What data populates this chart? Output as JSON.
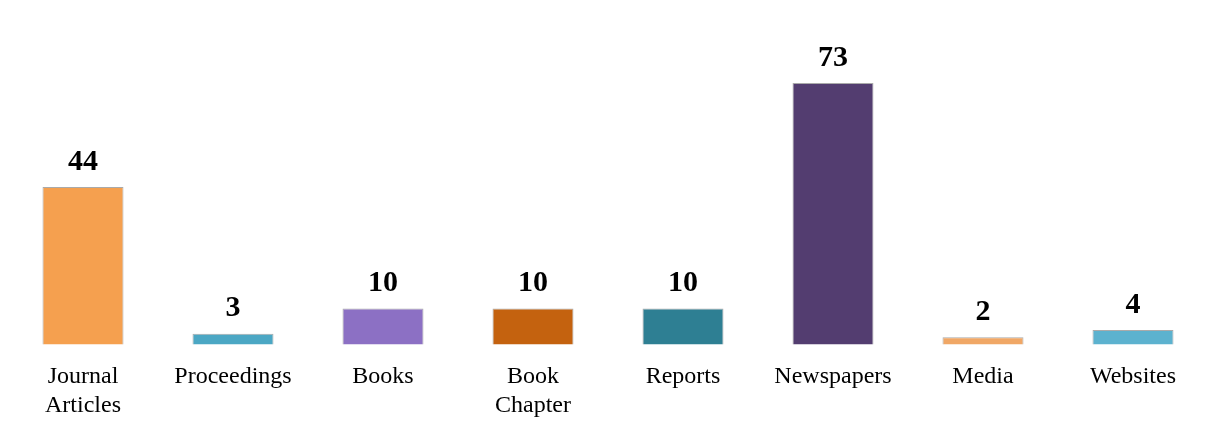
{
  "chart_data": {
    "type": "bar",
    "categories": [
      "Journal Articles",
      "Proceedings",
      "Books",
      "Book Chapter",
      "Reports",
      "Newspapers",
      "Media",
      "Websites"
    ],
    "values": [
      44,
      3,
      10,
      10,
      10,
      73,
      2,
      4
    ],
    "colors": [
      "#f5a04f",
      "#4ba7c4",
      "#8c70c4",
      "#c4620f",
      "#2e7f93",
      "#533d70",
      "#f0a766",
      "#5cb2cf"
    ],
    "data_labels": true,
    "grid": false,
    "legend": false
  }
}
